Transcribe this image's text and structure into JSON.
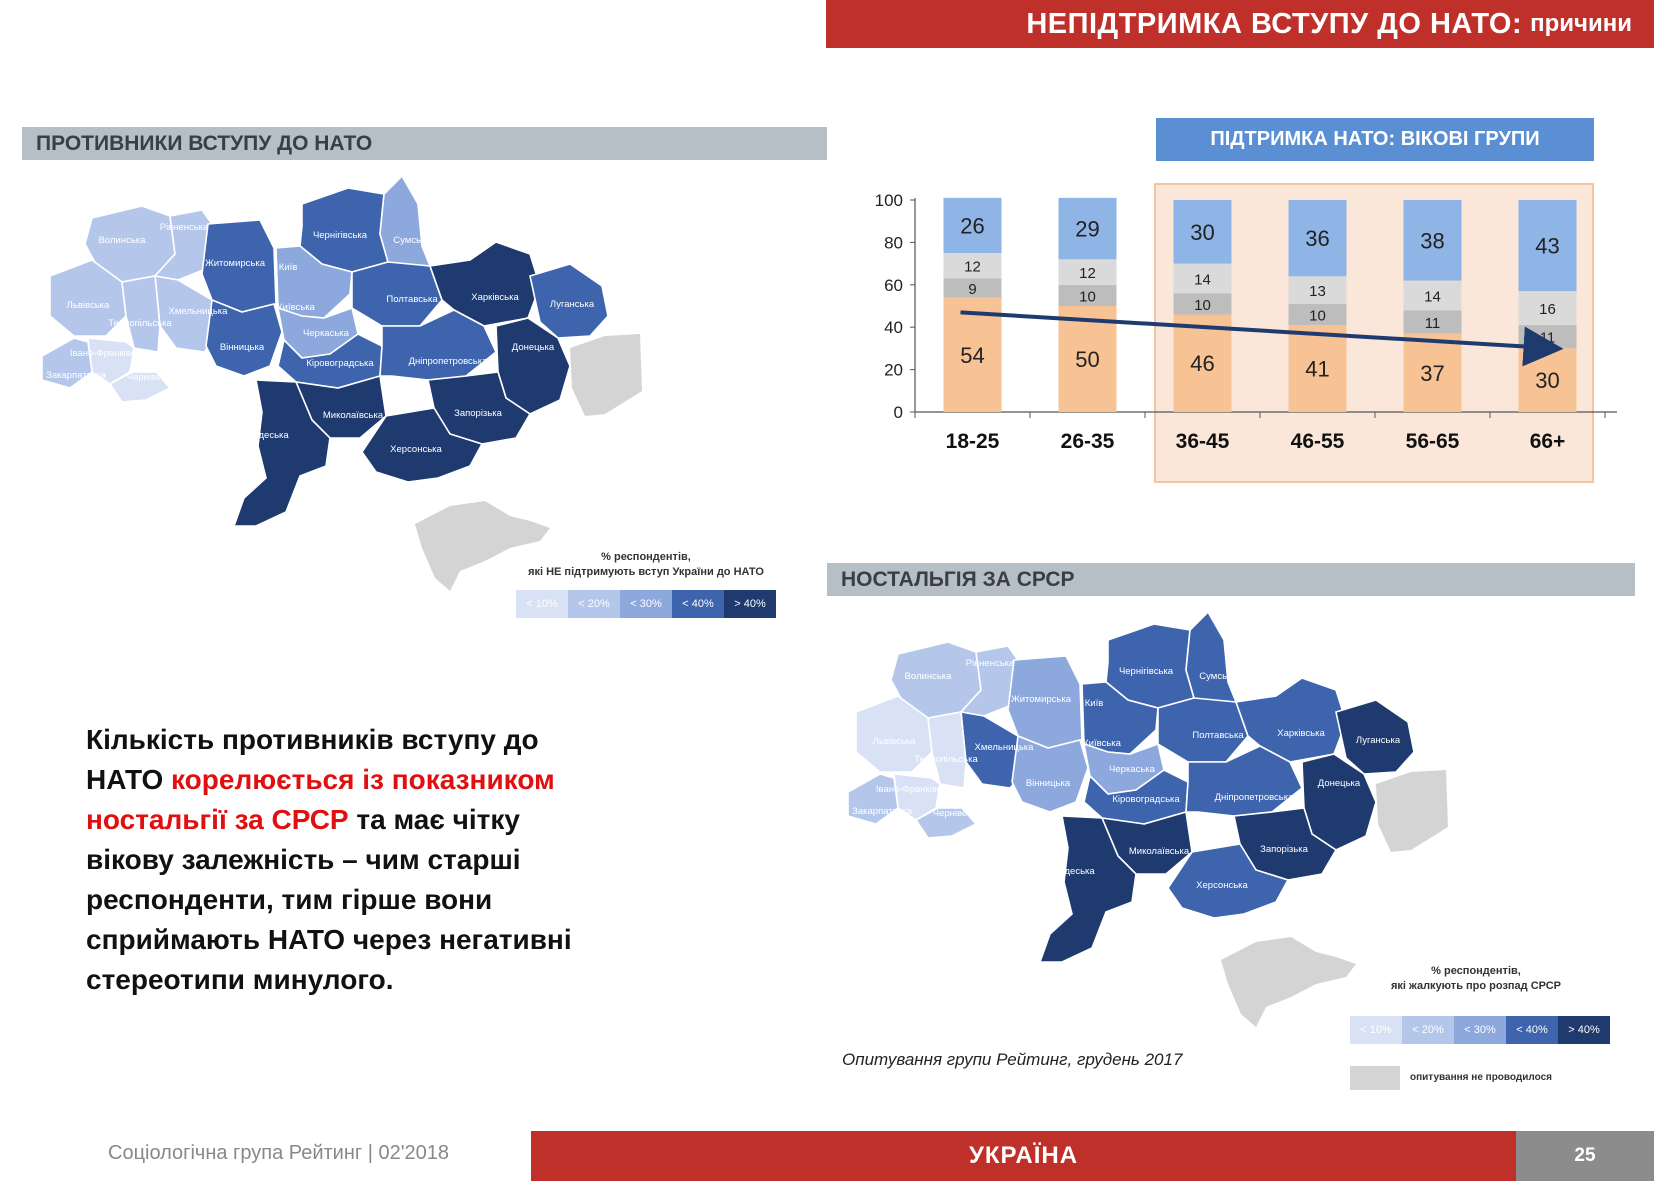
{
  "banner": {
    "title_main": "НЕПІДТРИМКА ВСТУПУ ДО НАТО:",
    "title_sub": "причини"
  },
  "left_map": {
    "header": "ПРОТИВНИКИ ВСТУПУ ДО НАТО",
    "legend_title_1": "% респондентів,",
    "legend_title_2": "які НЕ підтримують вступ України до НАТО",
    "legend": [
      {
        "label": "< 10%",
        "color": "#d9e1f4"
      },
      {
        "label": "< 20%",
        "color": "#b4c7ea"
      },
      {
        "label": "< 30%",
        "color": "#8ca8dd"
      },
      {
        "label": "< 40%",
        "color": "#3d64ad"
      },
      {
        "label": "> 40%",
        "color": "#1f3a6e"
      }
    ],
    "regions": [
      {
        "name": "Волинська",
        "level": 1
      },
      {
        "name": "Рівненська",
        "level": 1
      },
      {
        "name": "Житомирська",
        "level": 3
      },
      {
        "name": "Київ",
        "level": 2
      },
      {
        "name": "Чернігівська",
        "level": 3
      },
      {
        "name": "Сумська",
        "level": 2
      },
      {
        "name": "Львівська",
        "level": 1
      },
      {
        "name": "Хмельницька",
        "level": 1
      },
      {
        "name": "Тернопільська",
        "level": 1
      },
      {
        "name": "Київська",
        "level": 2
      },
      {
        "name": "Полтавська",
        "level": 3
      },
      {
        "name": "Харківська",
        "level": 4
      },
      {
        "name": "Луганська",
        "level": 3
      },
      {
        "name": "Івано-Франківська",
        "level": 0
      },
      {
        "name": "Вінницька",
        "level": 3
      },
      {
        "name": "Черкаська",
        "level": 2
      },
      {
        "name": "Закарпатська",
        "level": 1
      },
      {
        "name": "Чернівецька",
        "level": 0
      },
      {
        "name": "Кіровоградська",
        "level": 3
      },
      {
        "name": "Дніпропетровська",
        "level": 3
      },
      {
        "name": "Донецька",
        "level": 4
      },
      {
        "name": "Миколаївська",
        "level": 4
      },
      {
        "name": "Запорізька",
        "level": 4
      },
      {
        "name": "Одеська",
        "level": 4
      },
      {
        "name": "Херсонська",
        "level": 4
      }
    ]
  },
  "age_chart": {
    "header": "ПІДТРИМКА НАТО: ВІКОВІ ГРУПИ"
  },
  "chart_data": {
    "type": "bar",
    "stacked": true,
    "title": "ПІДТРИМКА НАТО: ВІКОВІ ГРУПИ",
    "categories": [
      "18-25",
      "26-35",
      "36-45",
      "46-55",
      "56-65",
      "66+"
    ],
    "ylim": [
      0,
      100
    ],
    "yticks": [
      0,
      20,
      40,
      60,
      80,
      100
    ],
    "series": [
      {
        "values": [
          54,
          50,
          46,
          41,
          37,
          30
        ],
        "color": "#f8c394"
      },
      {
        "values": [
          9,
          10,
          10,
          10,
          11,
          11
        ],
        "color": "#bdbdbd"
      },
      {
        "values": [
          12,
          12,
          14,
          13,
          14,
          16
        ],
        "color": "#dadada"
      },
      {
        "values": [
          26,
          29,
          30,
          36,
          38,
          43
        ],
        "color": "#8fb4e6"
      }
    ],
    "highlighted_categories": [
      "36-45",
      "46-55",
      "56-65",
      "66+"
    ],
    "trend_arrow": {
      "from": "18-25",
      "to": "66+",
      "start_value": 47,
      "end_value": 30,
      "color": "#1f3a6e"
    }
  },
  "right_map": {
    "header": "НОСТАЛЬГІЯ ЗА СРСР",
    "legend_title_1": "% респондентів,",
    "legend_title_2": "які жалкують про розпад СРСР",
    "legend": [
      {
        "label": "< 10%",
        "color": "#d9e1f4"
      },
      {
        "label": "< 20%",
        "color": "#b4c7ea"
      },
      {
        "label": "< 30%",
        "color": "#8ca8dd"
      },
      {
        "label": "< 40%",
        "color": "#3d64ad"
      },
      {
        "label": "> 40%",
        "color": "#1f3a6e"
      }
    ],
    "not_conducted": "опитування не проводилося",
    "regions": [
      {
        "name": "Волинська",
        "level": 1
      },
      {
        "name": "Рівненська",
        "level": 1
      },
      {
        "name": "Житомирська",
        "level": 2
      },
      {
        "name": "Київ",
        "level": 2
      },
      {
        "name": "Чернігівська",
        "level": 3
      },
      {
        "name": "Сумська",
        "level": 3
      },
      {
        "name": "Львівська",
        "level": 0
      },
      {
        "name": "Хмельницька",
        "level": 3
      },
      {
        "name": "Тернопільська",
        "level": 0
      },
      {
        "name": "Київська",
        "level": 3
      },
      {
        "name": "Полтавська",
        "level": 3
      },
      {
        "name": "Харківська",
        "level": 3
      },
      {
        "name": "Луганська",
        "level": 4
      },
      {
        "name": "Івано-Франківська",
        "level": 0
      },
      {
        "name": "Вінницька",
        "level": 2
      },
      {
        "name": "Черкаська",
        "level": 2
      },
      {
        "name": "Закарпатська",
        "level": 1
      },
      {
        "name": "Чернівецька",
        "level": 1
      },
      {
        "name": "Кіровоградська",
        "level": 3
      },
      {
        "name": "Дніпропетровська",
        "level": 3
      },
      {
        "name": "Донецька",
        "level": 4
      },
      {
        "name": "Миколаївська",
        "level": 4
      },
      {
        "name": "Запорізька",
        "level": 4
      },
      {
        "name": "Одеська",
        "level": 4
      },
      {
        "name": "Херсонська",
        "level": 3
      }
    ]
  },
  "main_text": {
    "part1": "Кількість противників вступу до НАТО ",
    "highlight": "корелюється із показником ностальгії за СРСР",
    "part2": " та має чітку вікову залежність – чим старші респонденти, тим гірше вони сприймають НАТО через негативні стереотипи минулого."
  },
  "source": "Опитування групи Рейтинг, грудень 2017",
  "footer": {
    "left": "Соціологічна група Рейтинг  |  02'2018",
    "center": "УКРАЇНА",
    "page": "25"
  }
}
